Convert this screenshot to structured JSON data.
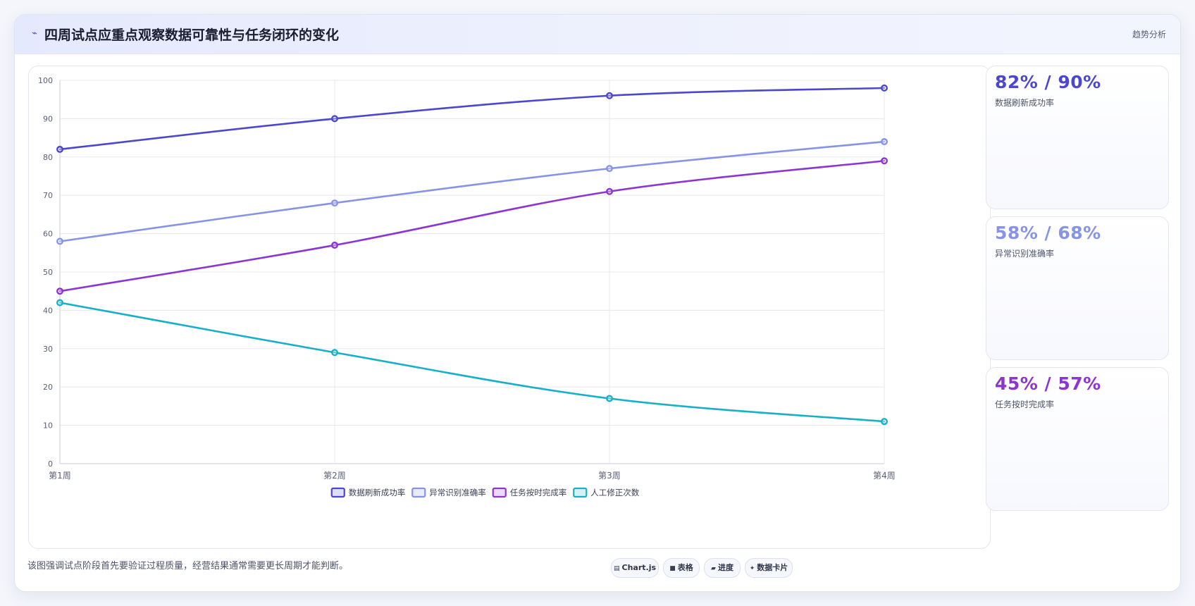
{
  "header": {
    "icon": "trend-line-icon",
    "title": "四周试点应重点观察数据可靠性与任务闭环的变化",
    "tag": "趋势分析"
  },
  "colors": {
    "series1": "#4b47cf",
    "series2": "#8793e6",
    "series3": "#8d35d3",
    "series4": "#17b0c7",
    "grid": "#e6e8ef",
    "axis_text": "#5a6078"
  },
  "chart_data": {
    "type": "line",
    "x": [
      "第1周",
      "第2周",
      "第3周",
      "第4周"
    ],
    "ylim": [
      0,
      100
    ],
    "yticks": [
      0,
      10,
      20,
      30,
      40,
      50,
      60,
      70,
      80,
      90,
      100
    ],
    "grid": true,
    "legend_position": "bottom",
    "series": [
      {
        "name": "数据刷新成功率",
        "values": [
          82,
          90,
          96,
          98
        ],
        "color": "#4b47cf"
      },
      {
        "name": "异常识别准确率",
        "values": [
          58,
          68,
          77,
          84
        ],
        "color": "#8793e6"
      },
      {
        "name": "任务按时完成率",
        "values": [
          45,
          57,
          71,
          79
        ],
        "color": "#8d35d3"
      },
      {
        "name": "人工修正次数",
        "values": [
          42,
          29,
          17,
          11
        ],
        "color": "#17b0c7"
      }
    ]
  },
  "stats": [
    {
      "value": "82% / 90%",
      "label": "数据刷新成功率",
      "color": "#4b47cf"
    },
    {
      "value": "58% / 68%",
      "label": "异常识别准确率",
      "color": "#8793e6"
    },
    {
      "value": "45% / 57%",
      "label": "任务按时完成率",
      "color": "#8d35d3"
    }
  ],
  "footer": {
    "note": "该图强调试点阶段首先要验证过程质量，经营结果通常需要更长周期才能判断。",
    "pills": [
      {
        "label": "Chart.js",
        "icon": "chart-icon"
      },
      {
        "label": "表格",
        "icon": "table-icon"
      },
      {
        "label": "进度",
        "icon": "progress-icon"
      },
      {
        "label": "数据卡片",
        "icon": "sparkle-icon"
      }
    ]
  }
}
